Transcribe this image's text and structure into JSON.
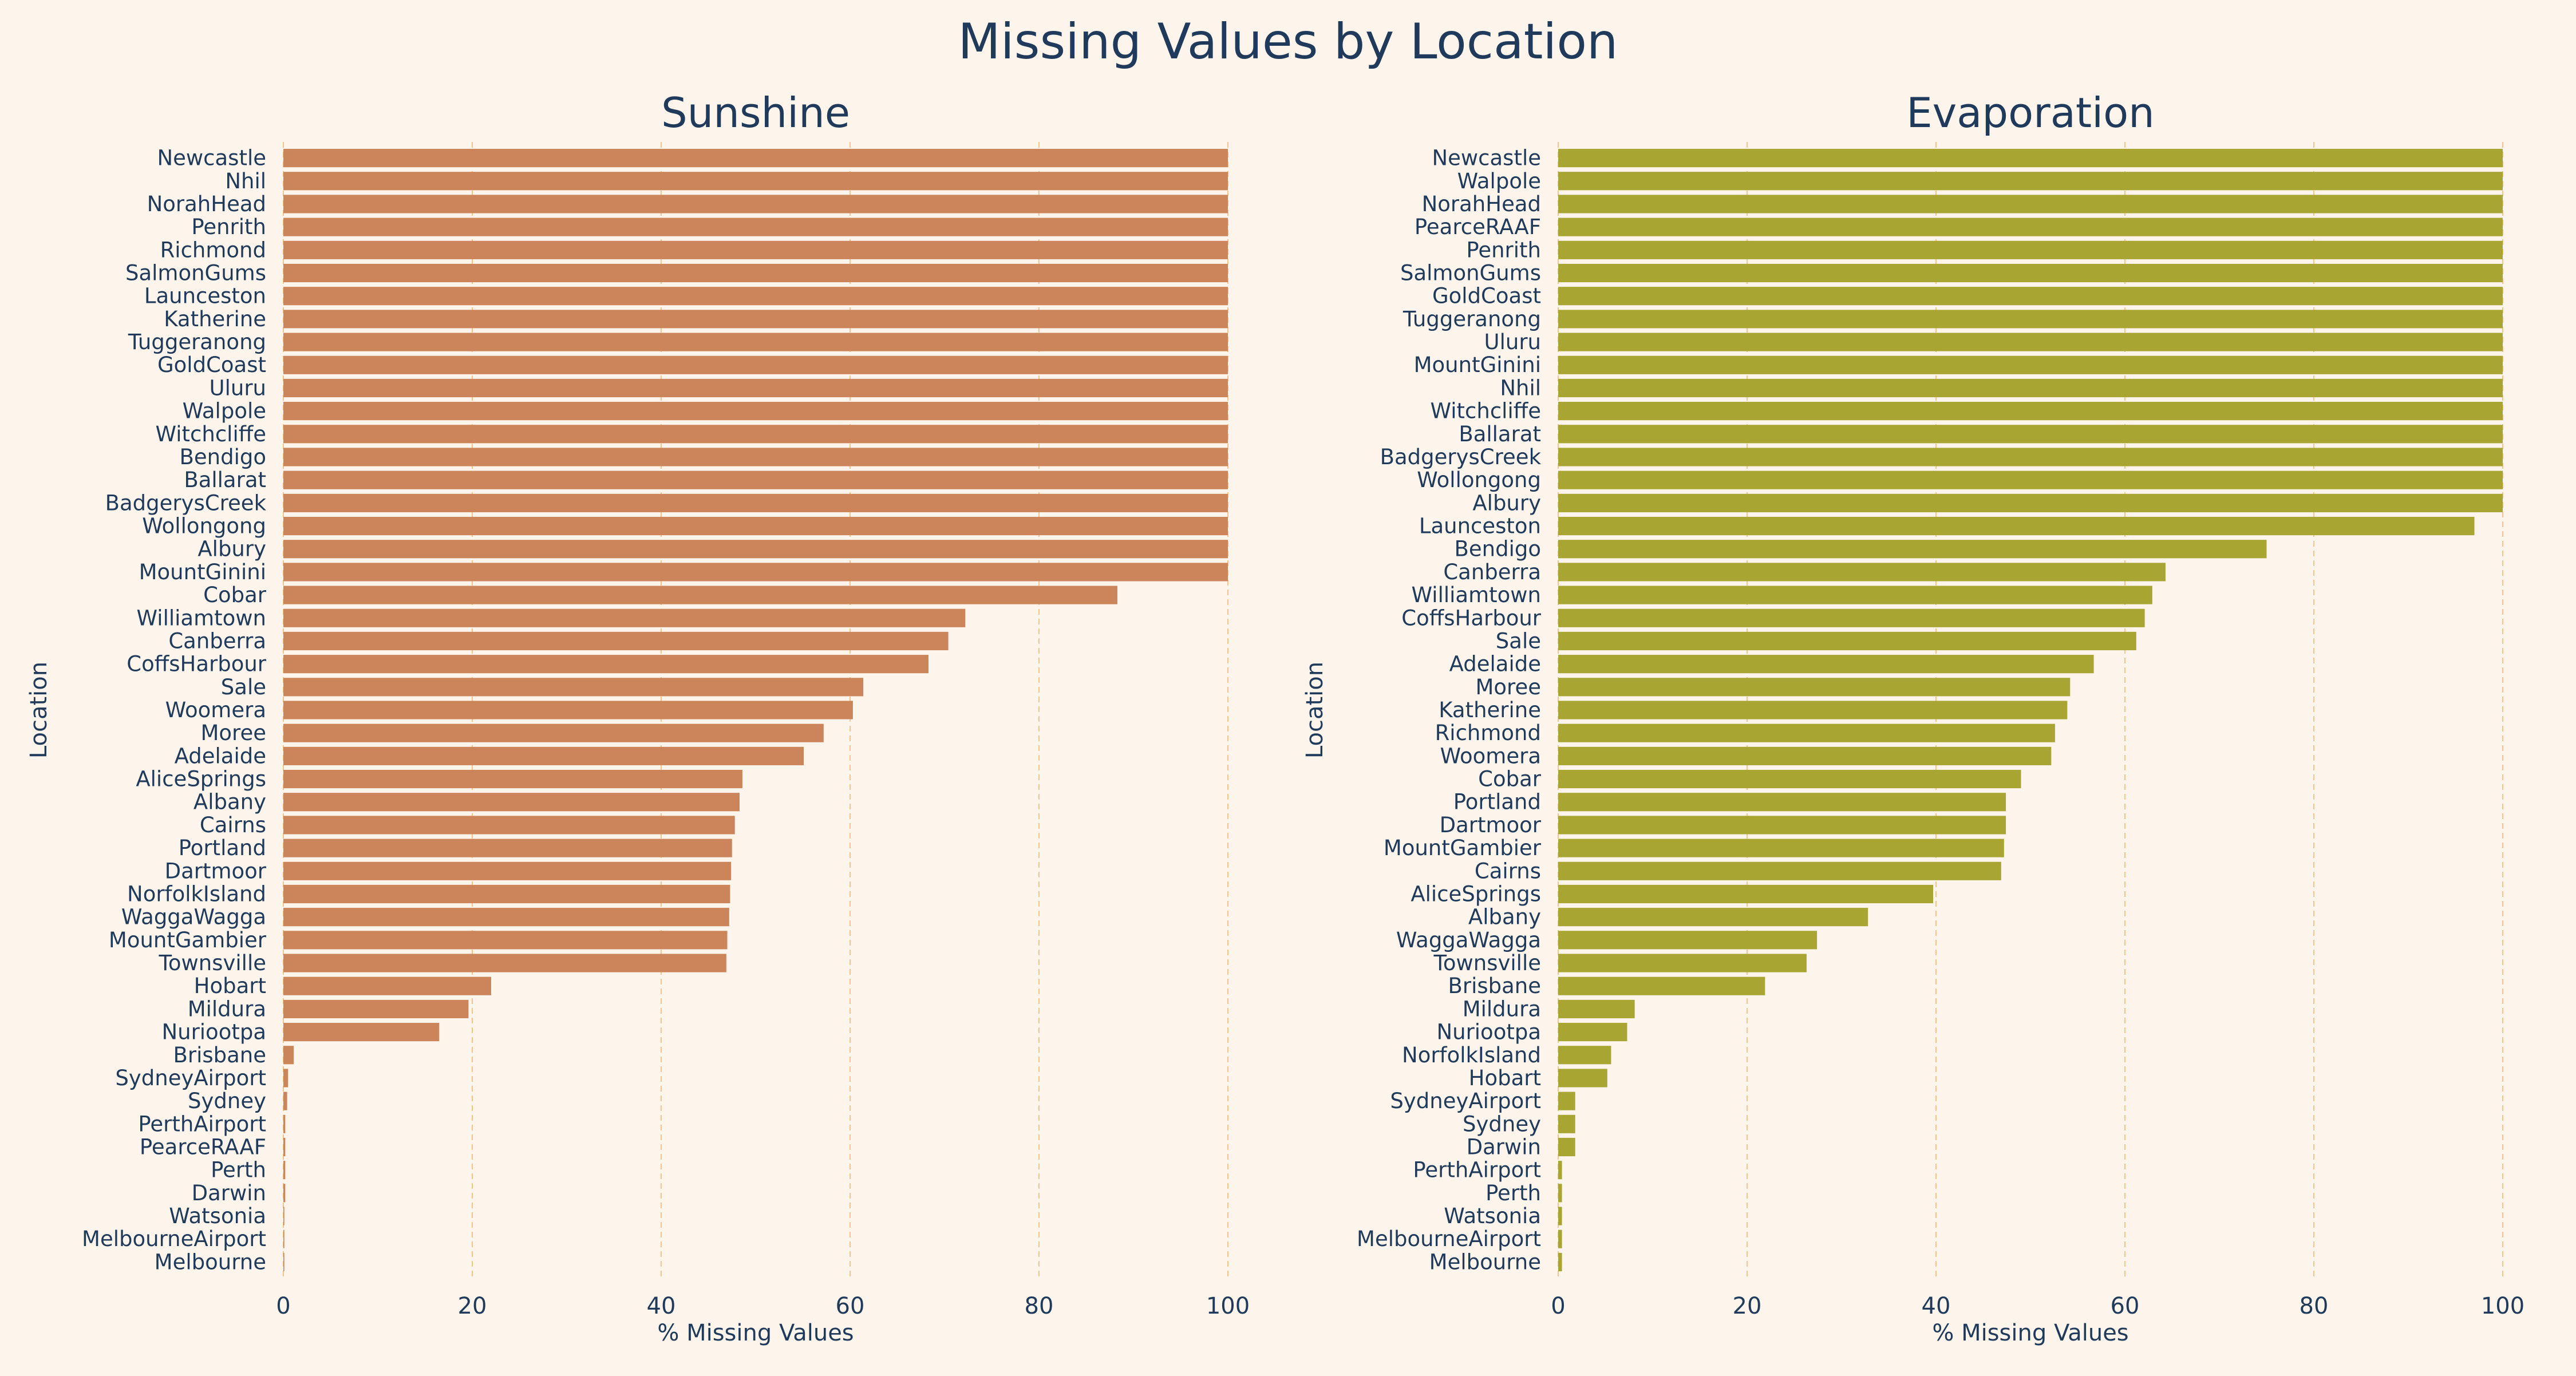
{
  "title": "Missing Values by Location",
  "colors": {
    "background": "#fdf5ec",
    "text": "#1f3a5a",
    "grid": "#f5c48a",
    "sunshine_bar": "#cc845a",
    "evaporation_bar": "#a8a532"
  },
  "chart_data": [
    {
      "type": "bar",
      "orientation": "horizontal",
      "title": "Sunshine",
      "xlabel": "% Missing Values",
      "ylabel": "Location",
      "xlim": [
        0,
        100
      ],
      "xticks": [
        0,
        20,
        40,
        60,
        80,
        100
      ],
      "grid": "vertical dashed",
      "categories": [
        "Newcastle",
        "Nhil",
        "NorahHead",
        "Penrith",
        "Richmond",
        "SalmonGums",
        "Launceston",
        "Katherine",
        "Tuggeranong",
        "GoldCoast",
        "Uluru",
        "Walpole",
        "Witchcliffe",
        "Bendigo",
        "Ballarat",
        "BadgerysCreek",
        "Wollongong",
        "Albury",
        "MountGinini",
        "Cobar",
        "Williamtown",
        "Canberra",
        "CoffsHarbour",
        "Sale",
        "Woomera",
        "Moree",
        "Adelaide",
        "AliceSprings",
        "Albany",
        "Cairns",
        "Portland",
        "Dartmoor",
        "NorfolkIsland",
        "WaggaWagga",
        "MountGambier",
        "Townsville",
        "Hobart",
        "Mildura",
        "Nuriootpa",
        "Brisbane",
        "SydneyAirport",
        "Sydney",
        "PerthAirport",
        "PearceRAAF",
        "Perth",
        "Darwin",
        "Watsonia",
        "MelbourneAirport",
        "Melbourne"
      ],
      "values": [
        100,
        100,
        100,
        100,
        100,
        100,
        100,
        100,
        100,
        100,
        100,
        100,
        100,
        100,
        100,
        100,
        100,
        100,
        100,
        88.3,
        72.2,
        70.4,
        68.3,
        61.4,
        60.3,
        57.2,
        55.1,
        48.6,
        48.3,
        47.8,
        47.5,
        47.4,
        47.3,
        47.2,
        47.0,
        46.9,
        22.0,
        19.6,
        16.5,
        1.1,
        0.5,
        0.4,
        0.2,
        0.2,
        0.2,
        0.2,
        0.1,
        0.1,
        0.1
      ]
    },
    {
      "type": "bar",
      "orientation": "horizontal",
      "title": "Evaporation",
      "xlabel": "% Missing Values",
      "ylabel": "Location",
      "xlim": [
        0,
        100
      ],
      "xticks": [
        0,
        20,
        40,
        60,
        80,
        100
      ],
      "grid": "vertical dashed",
      "categories": [
        "Newcastle",
        "Walpole",
        "NorahHead",
        "PearceRAAF",
        "Penrith",
        "SalmonGums",
        "GoldCoast",
        "Tuggeranong",
        "Uluru",
        "MountGinini",
        "Nhil",
        "Witchcliffe",
        "Ballarat",
        "BadgerysCreek",
        "Wollongong",
        "Albury",
        "Launceston",
        "Bendigo",
        "Canberra",
        "Williamtown",
        "CoffsHarbour",
        "Sale",
        "Adelaide",
        "Moree",
        "Katherine",
        "Richmond",
        "Woomera",
        "Cobar",
        "Portland",
        "Dartmoor",
        "MountGambier",
        "Cairns",
        "AliceSprings",
        "Albany",
        "WaggaWagga",
        "Townsville",
        "Brisbane",
        "Mildura",
        "Nuriootpa",
        "NorfolkIsland",
        "Hobart",
        "SydneyAirport",
        "Sydney",
        "Darwin",
        "PerthAirport",
        "Perth",
        "Watsonia",
        "MelbourneAirport",
        "Melbourne"
      ],
      "values": [
        100,
        100,
        100,
        100,
        100,
        100,
        100,
        100,
        100,
        100,
        100,
        100,
        100,
        100,
        100,
        100,
        97.0,
        75.0,
        64.3,
        62.9,
        62.1,
        61.2,
        56.7,
        54.2,
        53.9,
        52.6,
        52.2,
        49.0,
        47.4,
        47.4,
        47.2,
        46.9,
        39.7,
        32.8,
        27.4,
        26.3,
        21.9,
        8.1,
        7.3,
        5.6,
        5.2,
        1.8,
        1.8,
        1.8,
        0.4,
        0.4,
        0.4,
        0.4,
        0.4
      ]
    }
  ]
}
